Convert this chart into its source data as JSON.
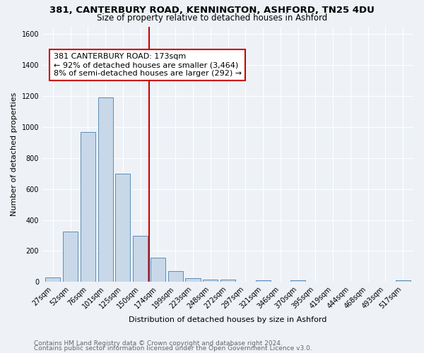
{
  "title1": "381, CANTERBURY ROAD, KENNINGTON, ASHFORD, TN25 4DU",
  "title2": "Size of property relative to detached houses in Ashford",
  "xlabel": "Distribution of detached houses by size in Ashford",
  "ylabel": "Number of detached properties",
  "categories": [
    "27sqm",
    "52sqm",
    "76sqm",
    "101sqm",
    "125sqm",
    "150sqm",
    "174sqm",
    "199sqm",
    "223sqm",
    "248sqm",
    "272sqm",
    "297sqm",
    "321sqm",
    "346sqm",
    "370sqm",
    "395sqm",
    "419sqm",
    "444sqm",
    "468sqm",
    "493sqm",
    "517sqm"
  ],
  "values": [
    30,
    325,
    970,
    1190,
    700,
    300,
    155,
    70,
    25,
    15,
    15,
    0,
    10,
    0,
    12,
    0,
    0,
    0,
    0,
    0,
    12
  ],
  "bar_color": "#c8d8e8",
  "bar_edge_color": "#5b8db8",
  "vline_color": "#cc0000",
  "annotation_line1": "381 CANTERBURY ROAD: 173sqm",
  "annotation_line2": "← 92% of detached houses are smaller (3,464)",
  "annotation_line3": "8% of semi-detached houses are larger (292) →",
  "annotation_box_color": "#ffffff",
  "annotation_box_edge": "#cc0000",
  "ylim": [
    0,
    1650
  ],
  "yticks": [
    0,
    200,
    400,
    600,
    800,
    1000,
    1200,
    1400,
    1600
  ],
  "footer1": "Contains HM Land Registry data © Crown copyright and database right 2024.",
  "footer2": "Contains public sector information licensed under the Open Government Licence v3.0.",
  "bg_color": "#eef2f7",
  "grid_color": "#ffffff",
  "title1_fontsize": 9.5,
  "title2_fontsize": 8.5,
  "axis_label_fontsize": 8,
  "tick_fontsize": 7,
  "annotation_fontsize": 8,
  "footer_fontsize": 6.5
}
